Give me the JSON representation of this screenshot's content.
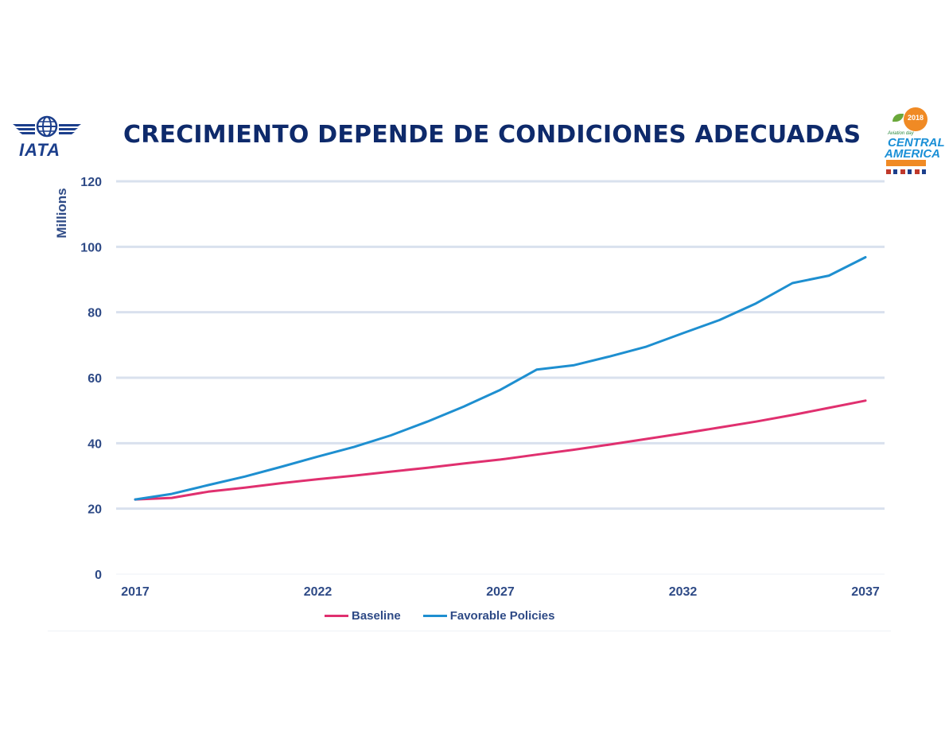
{
  "header": {
    "title": "CRECIMIENTO DEPENDE DE CONDICIONES ADECUADAS",
    "logo_left_text": "IATA",
    "logo_right": {
      "year": "2018",
      "small_text": "Aviation day",
      "line1": "CENTRAL",
      "line2": "AMERICA"
    }
  },
  "colors": {
    "baseline": "#e0306f",
    "favorable": "#1e8fd0",
    "grid": "#d9e1ee",
    "axis_text": "#2e4a86",
    "title": "#0e2a6b"
  },
  "chart_data": {
    "type": "line",
    "title": "CRECIMIENTO DEPENDE DE CONDICIONES ADECUADAS",
    "xlabel": "",
    "ylabel": "Millions",
    "x": [
      2017,
      2018,
      2019,
      2020,
      2021,
      2022,
      2023,
      2024,
      2025,
      2026,
      2027,
      2028,
      2029,
      2030,
      2031,
      2032,
      2033,
      2034,
      2035,
      2036,
      2037
    ],
    "x_ticks": [
      "2017",
      "2022",
      "2027",
      "2032",
      "2037"
    ],
    "y_ticks": [
      "0",
      "20",
      "40",
      "60",
      "80",
      "100",
      "120"
    ],
    "ylim": [
      0,
      120
    ],
    "xlim": [
      2017,
      2037
    ],
    "grid": true,
    "legend_position": "bottom",
    "series": [
      {
        "name": "Baseline",
        "values": [
          22.8,
          23.3,
          25.2,
          26.4,
          27.8,
          29.0,
          30.1,
          31.3,
          32.5,
          33.8,
          35.0,
          36.5,
          38.0,
          39.6,
          41.3,
          43.0,
          44.8,
          46.6,
          48.6,
          50.8,
          53.0
        ]
      },
      {
        "name": "Favorable Policies",
        "values": [
          22.8,
          24.5,
          27.2,
          29.8,
          32.8,
          35.9,
          38.9,
          42.4,
          46.6,
          51.2,
          56.3,
          62.5,
          63.8,
          66.5,
          69.5,
          73.6,
          77.6,
          82.7,
          88.9,
          91.2,
          96.8
        ]
      }
    ]
  }
}
